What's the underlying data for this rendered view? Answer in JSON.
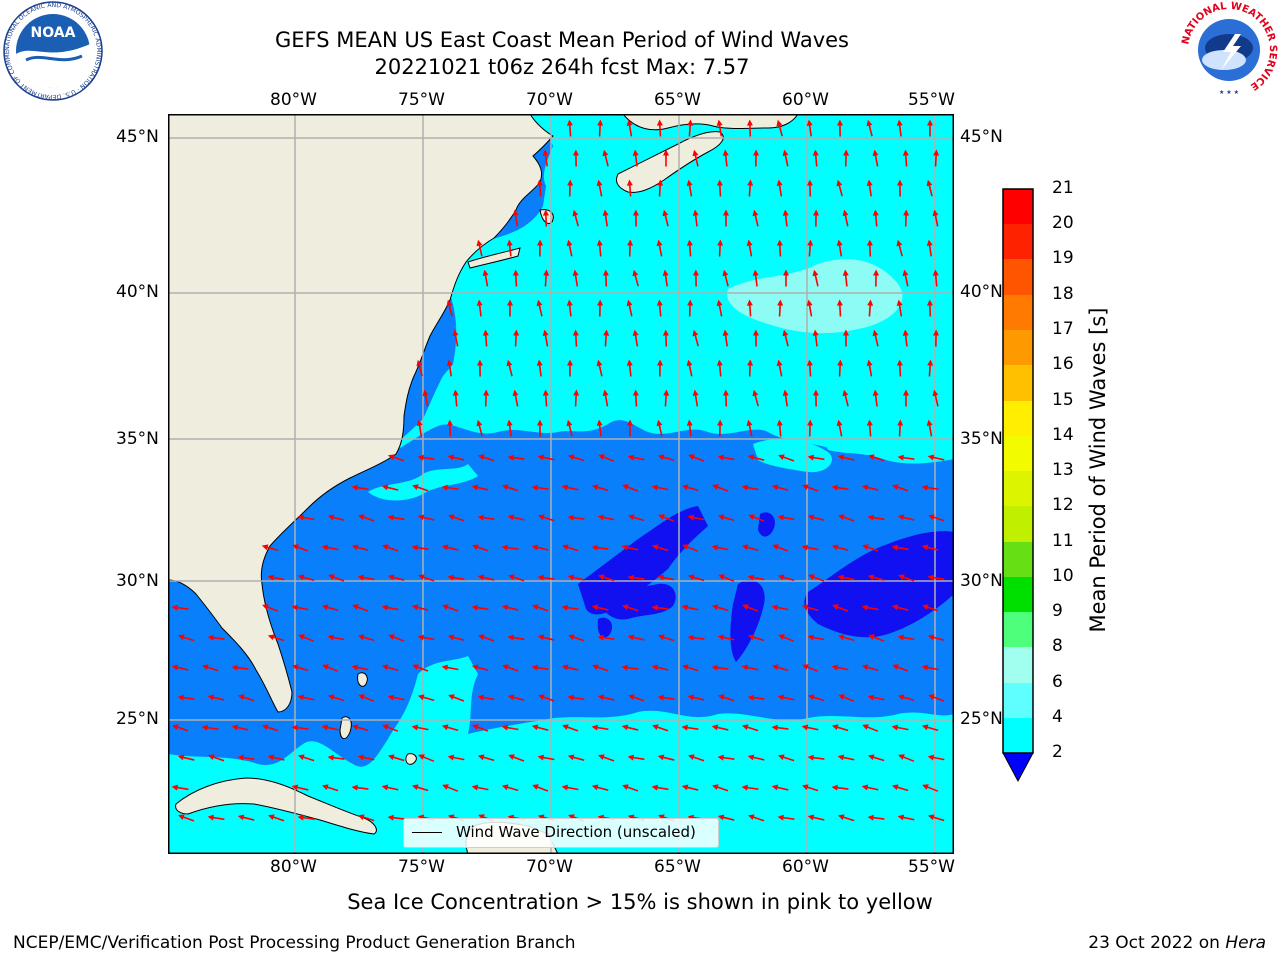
{
  "header": {
    "title": "GEFS MEAN US East Coast Mean Period of Wind Waves",
    "subtitle": "20221021 t06z 264h fcst   Max: 7.57"
  },
  "logos": {
    "left": {
      "name": "NOAA",
      "ring_text": "NATIONAL OCEANIC AND ATMOSPHERIC ADMINISTRATION · U.S. DEPARTMENT OF COMMERCE"
    },
    "right": {
      "ring_text": "NATIONAL WEATHER SERVICE"
    }
  },
  "map": {
    "lon_labels": [
      "80°W",
      "75°W",
      "70°W",
      "65°W",
      "60°W",
      "55°W"
    ],
    "lat_labels": [
      "45°N",
      "40°N",
      "35°N",
      "30°N",
      "25°N"
    ],
    "extent": {
      "lon_min": -85,
      "lon_max": -54.5,
      "lat_min": 20.5,
      "lat_max": 46
    },
    "colors": {
      "land": "#efedde",
      "band_2_4": "#0a7ffb",
      "band_4_6": "#00ffff",
      "band_6_8": "#9bfcf3",
      "band_lt2": "#1010f0",
      "arrow": "#ff0000",
      "grid": "#b0b0b0"
    },
    "field_regions": [
      {
        "band": "2-4",
        "description_region": "south of ~36N offshore, Gulf of Mexico, Florida coast"
      },
      {
        "band": "lt2",
        "description_region": "patches near 28-32N, 55-68W"
      },
      {
        "band": "4-6",
        "description_region": "north of ~36N, Caribbean / Bahamas south of ~24N"
      },
      {
        "band": "6-8",
        "description_region": "patch near 38-41N, 56-62W"
      }
    ],
    "arrow_direction_by_region": [
      {
        "region": "north of 36N",
        "direction": "toward north / north-northwest"
      },
      {
        "region": "south of 36N",
        "direction": "toward west-southwest"
      }
    ],
    "legend_label": "Wind Wave Direction (unscaled)"
  },
  "colorbar": {
    "title": "Mean Period of Wind Waves [s]",
    "ticks": [
      "21",
      "20",
      "19",
      "18",
      "17",
      "16",
      "15",
      "14",
      "13",
      "12",
      "11",
      "10",
      "9",
      "8",
      "6",
      "4",
      "2"
    ],
    "bands_top_to_bottom": [
      "#ff0000",
      "#ff2200",
      "#ff5500",
      "#ff7a00",
      "#ff9900",
      "#ffc000",
      "#ffee00",
      "#f2fb00",
      "#dcf400",
      "#c0f000",
      "#66e015",
      "#00e000",
      "#4dff7a",
      "#a0ffee",
      "#60ffff",
      "#00ffff",
      "#0a7ffb"
    ],
    "extend_below_color": "#0000ff"
  },
  "caption": "Sea Ice Concentration > 15% is shown in pink to yellow",
  "footer": {
    "left": "NCEP/EMC/Verification Post Processing Product Generation Branch",
    "date": "23 Oct 2022 on ",
    "machine": "Hera"
  }
}
